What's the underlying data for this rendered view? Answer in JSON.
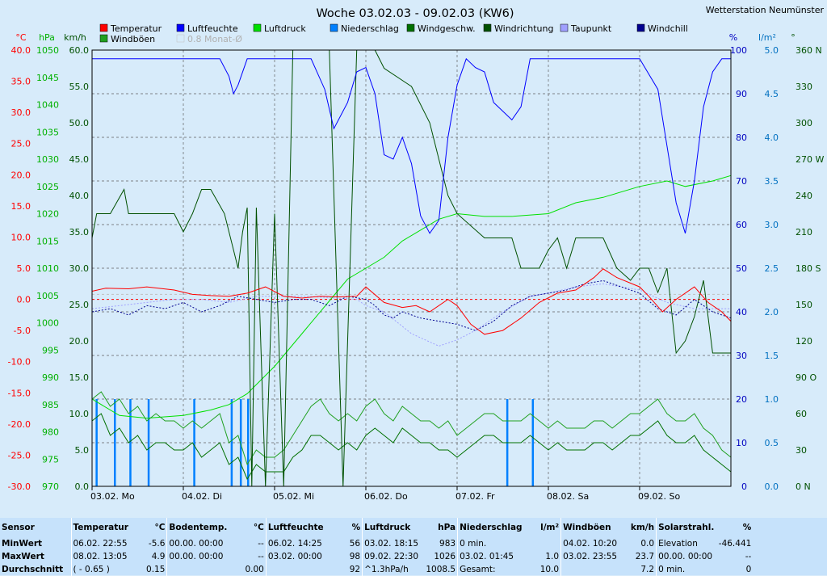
{
  "station": "Wetterstation Neumünster",
  "chart_data": {
    "type": "line",
    "title": "Woche 03.02.03 - 09.02.03 (KW6)",
    "x_labels": [
      "03.02. Mo",
      "04.02. Di",
      "05.02. Mi",
      "06.02. Do",
      "07.02. Fr",
      "08.02. Sa",
      "09.02. So"
    ],
    "x_range": [
      0,
      7
    ],
    "grid": true,
    "legend_placement": "top",
    "legend": [
      {
        "name": "Temperatur",
        "color": "#ff0000"
      },
      {
        "name": "Luftfeuchte",
        "color": "#0000ff"
      },
      {
        "name": "Luftdruck",
        "color": "#00e000"
      },
      {
        "name": "Niederschlag",
        "color": "#0080ff"
      },
      {
        "name": "Windgeschw.",
        "color": "#007000"
      },
      {
        "name": "Windrichtung",
        "color": "#005000"
      },
      {
        "name": "Taupunkt",
        "color": "#a0a0ff"
      },
      {
        "name": "Windchill",
        "color": "#000090"
      },
      {
        "name": "Windböen",
        "color": "#20a020"
      },
      {
        "name": "0.8 Monat-Ø",
        "color": "#c0c0c0"
      }
    ],
    "axes": [
      {
        "id": "temp",
        "unit": "°C",
        "color": "#ff0000",
        "range": [
          -30,
          40
        ],
        "ticks": [
          "40.0",
          "35.0",
          "30.0",
          "25.0",
          "20.0",
          "15.0",
          "10.0",
          "5.0",
          "0.0",
          "-5.0",
          "-10.0",
          "-15.0",
          "-20.0",
          "-25.0",
          "-30.0"
        ]
      },
      {
        "id": "pressure",
        "unit": "hPa",
        "color": "#00b000",
        "range": [
          970,
          1050
        ],
        "ticks": [
          "1050",
          "1045",
          "1040",
          "1035",
          "1030",
          "1025",
          "1020",
          "1015",
          "1010",
          "1005",
          "1000",
          "995",
          "990",
          "985",
          "980",
          "975",
          "970"
        ]
      },
      {
        "id": "wind",
        "unit": "km/h",
        "color": "#005000",
        "range": [
          0,
          60
        ],
        "ticks": [
          "60.0",
          "55.0",
          "50.0",
          "45.0",
          "40.0",
          "35.0",
          "30.0",
          "25.0",
          "20.0",
          "15.0",
          "10.0",
          "5.0",
          "0.0"
        ]
      },
      {
        "id": "humidity",
        "unit": "%",
        "color": "#0000c0",
        "range": [
          0,
          100
        ],
        "ticks": [
          "100",
          "90",
          "80",
          "70",
          "60",
          "50",
          "40",
          "30",
          "20",
          "10",
          "0"
        ]
      },
      {
        "id": "rain",
        "unit": "l/m²",
        "color": "#0070c0",
        "range": [
          0,
          5
        ],
        "ticks": [
          "5.0",
          "4.5",
          "4.0",
          "3.5",
          "3.0",
          "2.5",
          "2.0",
          "1.5",
          "1.0",
          "0.5",
          "0.0"
        ]
      },
      {
        "id": "direction",
        "unit": "°",
        "color": "#005000",
        "range": [
          0,
          360
        ],
        "ticks": [
          "360 N",
          "330",
          "300",
          "270 W",
          "240",
          "210",
          "180 S",
          "150",
          "120",
          "90 O",
          "60",
          "30",
          "0 N"
        ]
      }
    ],
    "series": [
      {
        "name": "Temperatur",
        "axis": "temp",
        "color": "#ff0000",
        "x": [
          0,
          0.15,
          0.4,
          0.6,
          0.9,
          1.1,
          1.3,
          1.5,
          1.7,
          1.9,
          2.1,
          2.3,
          2.5,
          2.7,
          2.9,
          3.0,
          3.2,
          3.4,
          3.55,
          3.7,
          3.9,
          4.0,
          4.15,
          4.3,
          4.5,
          4.7,
          4.9,
          5.1,
          5.3,
          5.4,
          5.5,
          5.6,
          5.75,
          6.0,
          6.1,
          6.25,
          6.4,
          6.6,
          6.75,
          6.9,
          7.0
        ],
        "y": [
          1.3,
          1.8,
          1.7,
          2.0,
          1.5,
          0.8,
          0.6,
          0.5,
          1.0,
          2.0,
          0.5,
          0.2,
          0.5,
          0.4,
          0.5,
          2.0,
          -0.5,
          -1.3,
          -1.0,
          -2.0,
          0.0,
          -1.0,
          -4.0,
          -5.6,
          -5.0,
          -3.0,
          -0.5,
          1.0,
          1.5,
          2.5,
          3.5,
          4.9,
          3.5,
          2.0,
          0.5,
          -2.0,
          0.0,
          2.0,
          -0.5,
          -2.0,
          -3.5
        ]
      },
      {
        "name": "Luftfeuchte",
        "axis": "humidity",
        "color": "#0000ff",
        "x": [
          0,
          0.5,
          1.0,
          1.4,
          1.5,
          1.55,
          1.6,
          1.7,
          2.0,
          2.4,
          2.55,
          2.65,
          2.7,
          2.8,
          2.9,
          3.0,
          3.1,
          3.2,
          3.3,
          3.4,
          3.5,
          3.6,
          3.7,
          3.8,
          3.9,
          4.0,
          4.1,
          4.2,
          4.3,
          4.4,
          4.6,
          4.7,
          4.8,
          5.0,
          5.5,
          6.0,
          6.2,
          6.3,
          6.4,
          6.5,
          6.6,
          6.7,
          6.8,
          6.9,
          7.0
        ],
        "y": [
          98,
          98,
          98,
          98,
          94,
          90,
          92,
          98,
          98,
          98,
          91,
          82,
          84,
          88,
          95,
          96,
          90,
          76,
          75,
          80,
          74,
          62,
          58,
          61,
          80,
          92,
          98,
          96,
          95,
          88,
          84,
          87,
          98,
          98,
          98,
          98,
          91,
          78,
          65,
          58,
          70,
          87,
          95,
          98,
          98
        ]
      },
      {
        "name": "Luftdruck",
        "axis": "pressure",
        "color": "#00e000",
        "x": [
          0,
          0.3,
          0.6,
          1.0,
          1.3,
          1.5,
          1.7,
          2.0,
          2.3,
          2.6,
          2.8,
          3.0,
          3.2,
          3.4,
          3.6,
          3.8,
          4.0,
          4.3,
          4.6,
          5.0,
          5.3,
          5.6,
          6.0,
          6.3,
          6.5,
          6.8,
          7.0
        ],
        "y": [
          986,
          983,
          982.5,
          983,
          984,
          985,
          987,
          992,
          998,
          1004,
          1008,
          1010,
          1012,
          1015,
          1017,
          1019,
          1020,
          1019.5,
          1019.5,
          1020,
          1022,
          1023,
          1025,
          1026,
          1025,
          1026,
          1027
        ]
      },
      {
        "name": "Taupunkt",
        "axis": "temp",
        "color": "#a0a0ff",
        "x": [
          0,
          0.3,
          0.6,
          0.9,
          1.2,
          1.5,
          1.8,
          2.0,
          2.3,
          2.6,
          2.9,
          3.0,
          3.2,
          3.5,
          3.8,
          4.0,
          4.2,
          4.5,
          4.8,
          5.0,
          5.3,
          5.6,
          6.0,
          6.3,
          6.6,
          7.0
        ],
        "y": [
          -1.5,
          -1.0,
          -0.5,
          0.0,
          0.0,
          -0.5,
          0.5,
          0.5,
          0.5,
          0.3,
          0.0,
          -1.0,
          -2.0,
          -5.5,
          -7.5,
          -6.5,
          -5.0,
          -2.0,
          0.5,
          1.0,
          2.0,
          2.5,
          1.5,
          -0.5,
          -1.5,
          -1.5
        ]
      },
      {
        "name": "Windchill",
        "axis": "temp",
        "color": "#000090",
        "x": [
          0,
          0.2,
          0.4,
          0.6,
          0.8,
          1.0,
          1.2,
          1.4,
          1.6,
          1.8,
          2.0,
          2.2,
          2.4,
          2.6,
          2.8,
          3.0,
          3.1,
          3.2,
          3.3,
          3.4,
          3.6,
          3.8,
          4.0,
          4.2,
          4.4,
          4.6,
          4.8,
          5.0,
          5.2,
          5.4,
          5.6,
          5.8,
          6.0,
          6.2,
          6.4,
          6.6,
          6.8,
          7.0
        ],
        "y": [
          -2.0,
          -1.5,
          -2.5,
          -1.0,
          -1.5,
          -0.5,
          -2.0,
          -1.0,
          0.5,
          0.0,
          -0.5,
          0.0,
          0.0,
          -1.0,
          0.5,
          0.0,
          -1.0,
          -2.5,
          -3.0,
          -2.0,
          -3.0,
          -3.5,
          -4.0,
          -5.0,
          -3.5,
          -1.0,
          0.5,
          1.0,
          1.5,
          2.5,
          3.0,
          2.0,
          1.0,
          -1.5,
          -2.5,
          0.0,
          -2.0,
          -3.0
        ]
      },
      {
        "name": "Windgeschw.",
        "axis": "wind",
        "color": "#007000",
        "x": [
          0,
          0.1,
          0.2,
          0.3,
          0.4,
          0.5,
          0.6,
          0.7,
          0.8,
          0.9,
          1.0,
          1.1,
          1.2,
          1.3,
          1.4,
          1.5,
          1.6,
          1.7,
          1.8,
          1.9,
          2.0,
          2.1,
          2.2,
          2.3,
          2.4,
          2.5,
          2.6,
          2.7,
          2.8,
          2.9,
          3.0,
          3.1,
          3.2,
          3.3,
          3.4,
          3.5,
          3.6,
          3.7,
          3.8,
          3.9,
          4.0,
          4.1,
          4.2,
          4.3,
          4.4,
          4.5,
          4.6,
          4.7,
          4.8,
          4.9,
          5.0,
          5.1,
          5.2,
          5.3,
          5.4,
          5.5,
          5.6,
          5.7,
          5.8,
          5.9,
          6.0,
          6.1,
          6.2,
          6.3,
          6.4,
          6.5,
          6.6,
          6.7,
          6.8,
          6.9,
          7.0
        ],
        "y": [
          9,
          10,
          7,
          8,
          6,
          7,
          5,
          6,
          6,
          5,
          5,
          6,
          4,
          5,
          6,
          3,
          4,
          1,
          3,
          2,
          2,
          2,
          4,
          5,
          7,
          7,
          6,
          5,
          6,
          5,
          7,
          8,
          7,
          6,
          8,
          7,
          6,
          6,
          5,
          5,
          4,
          5,
          6,
          7,
          7,
          6,
          6,
          6,
          7,
          6,
          5,
          6,
          5,
          5,
          5,
          6,
          6,
          5,
          6,
          7,
          7,
          8,
          9,
          7,
          6,
          6,
          7,
          5,
          4,
          3,
          2
        ]
      },
      {
        "name": "Windböen",
        "axis": "wind",
        "color": "#20a020",
        "x": [
          0,
          0.1,
          0.2,
          0.3,
          0.4,
          0.5,
          0.6,
          0.7,
          0.8,
          0.9,
          1.0,
          1.1,
          1.2,
          1.3,
          1.4,
          1.5,
          1.6,
          1.7,
          1.8,
          1.9,
          2.0,
          2.1,
          2.2,
          2.3,
          2.4,
          2.5,
          2.6,
          2.7,
          2.8,
          2.9,
          3.0,
          3.1,
          3.2,
          3.3,
          3.4,
          3.5,
          3.6,
          3.7,
          3.8,
          3.9,
          4.0,
          4.1,
          4.2,
          4.3,
          4.4,
          4.5,
          4.6,
          4.7,
          4.8,
          4.9,
          5.0,
          5.1,
          5.2,
          5.3,
          5.4,
          5.5,
          5.6,
          5.7,
          5.8,
          5.9,
          6.0,
          6.1,
          6.2,
          6.3,
          6.4,
          6.5,
          6.6,
          6.7,
          6.8,
          6.9,
          7.0
        ],
        "y": [
          12,
          13,
          11,
          12,
          10,
          11,
          9,
          10,
          9,
          9,
          8,
          9,
          8,
          9,
          10,
          6,
          7,
          3,
          5,
          4,
          4,
          5,
          7,
          9,
          11,
          12,
          10,
          9,
          10,
          9,
          11,
          12,
          10,
          9,
          11,
          10,
          9,
          9,
          8,
          9,
          7,
          8,
          9,
          10,
          10,
          9,
          9,
          9,
          10,
          9,
          8,
          9,
          8,
          8,
          8,
          9,
          9,
          8,
          9,
          10,
          10,
          11,
          12,
          10,
          9,
          9,
          10,
          8,
          7,
          5,
          4
        ]
      },
      {
        "name": "Windrichtung",
        "axis": "direction",
        "color": "#005000",
        "x": [
          0,
          0.05,
          0.2,
          0.35,
          0.4,
          0.5,
          0.7,
          0.9,
          1.0,
          1.1,
          1.2,
          1.3,
          1.45,
          1.6,
          1.65,
          1.7,
          1.75,
          1.8,
          1.9,
          2.0,
          2.1,
          2.2,
          2.3,
          2.5,
          2.6,
          2.75,
          2.9,
          3.0,
          3.1,
          3.2,
          3.5,
          3.7,
          3.9,
          4.0,
          4.3,
          4.6,
          4.7,
          4.9,
          5.0,
          5.1,
          5.2,
          5.3,
          5.6,
          5.75,
          5.9,
          6.0,
          6.1,
          6.2,
          6.3,
          6.4,
          6.5,
          6.6,
          6.7,
          6.8,
          6.9,
          7.0
        ],
        "y": [
          205,
          225,
          225,
          245,
          225,
          225,
          225,
          225,
          210,
          225,
          245,
          245,
          225,
          180,
          210,
          230,
          0,
          230,
          0,
          225,
          0,
          360,
          360,
          360,
          360,
          0,
          360,
          360,
          360,
          345,
          330,
          300,
          240,
          225,
          205,
          205,
          180,
          180,
          195,
          205,
          180,
          205,
          205,
          180,
          170,
          180,
          180,
          160,
          180,
          110,
          120,
          140,
          170,
          110,
          110,
          110
        ]
      }
    ],
    "rain_bars": {
      "axis": "rain",
      "color": "#0080ff",
      "x": [
        0.05,
        0.25,
        0.42,
        0.62,
        1.12,
        1.53,
        1.63,
        1.71,
        4.55,
        4.83
      ],
      "y": [
        1.0,
        1.0,
        1.0,
        1.0,
        1.0,
        1.0,
        1.0,
        1.0,
        1.0,
        1.0
      ]
    },
    "reference_lines": [
      {
        "axis": "temp",
        "value": 0,
        "color": "#ff0000",
        "style": "dashed"
      },
      {
        "axis": "temp",
        "value": 0.8,
        "color": "#c0c0c0",
        "style": "dashed",
        "label": "0.8 Monat-Ø"
      }
    ]
  },
  "table": {
    "row_labels": [
      "Sensor",
      "MinWert",
      "MaxWert",
      "Durchschnitt"
    ],
    "columns": [
      {
        "title": "Temperatur",
        "unit": "°C",
        "cells": [
          [
            "06.02.  22:55",
            "-5.6"
          ],
          [
            "08.02.  13:05",
            "4.9"
          ],
          [
            "( - 0.65 )",
            "0.15"
          ]
        ]
      },
      {
        "title": "Bodentemp.",
        "unit": "°C",
        "cells": [
          [
            "00.00.  00:00",
            "--"
          ],
          [
            "00.00.  00:00",
            "--"
          ],
          [
            "",
            "0.00"
          ]
        ]
      },
      {
        "title": "Luftfeuchte",
        "unit": "%",
        "cells": [
          [
            "06.02.  14:25",
            "56"
          ],
          [
            "03.02.  00:00",
            "98"
          ],
          [
            "",
            "92"
          ]
        ]
      },
      {
        "title": "Luftdruck",
        "unit": "hPa",
        "cells": [
          [
            "03.02.  18:15",
            "983"
          ],
          [
            "09.02.  22:30",
            "1026"
          ],
          [
            "^1.3hPa/h",
            "1008.5"
          ]
        ]
      },
      {
        "title": "Niederschlag",
        "unit": "l/m²",
        "cells": [
          [
            "0 min.",
            ""
          ],
          [
            "03.02.  01:45",
            "1.0"
          ],
          [
            "Gesamt:",
            "10.0"
          ]
        ]
      },
      {
        "title": "Windböen",
        "unit": "km/h",
        "cells": [
          [
            "04.02.  10:20",
            "0.0"
          ],
          [
            "03.02.  23:55",
            "23.7"
          ],
          [
            "",
            "7.2"
          ]
        ]
      },
      {
        "title": "Solarstrahl.",
        "unit": "%",
        "cells": [
          [
            "Elevation",
            "-46.441"
          ],
          [
            "00.00.  00:00",
            "--"
          ],
          [
            "0 min.",
            "0"
          ]
        ]
      }
    ]
  }
}
